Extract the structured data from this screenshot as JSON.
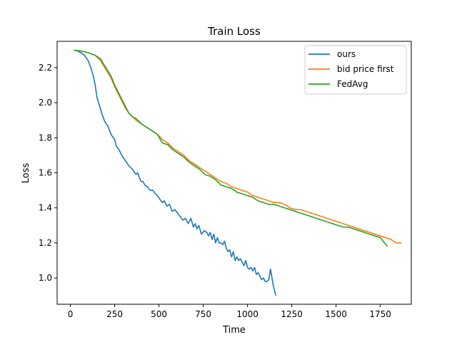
{
  "chart_data": {
    "type": "line",
    "title": "Train Loss",
    "xlabel": "Time",
    "ylabel": "Loss",
    "xlim": [
      -75,
      1925
    ],
    "ylim": [
      0.85,
      2.35
    ],
    "xticks": [
      0,
      250,
      500,
      750,
      1000,
      1250,
      1500,
      1750
    ],
    "yticks": [
      1.0,
      1.2,
      1.4,
      1.6,
      1.8,
      2.0,
      2.2
    ],
    "xtick_labels": [
      "0",
      "250",
      "500",
      "750",
      "1000",
      "1250",
      "1500",
      "1750"
    ],
    "ytick_labels": [
      "1.0",
      "1.2",
      "1.4",
      "1.6",
      "1.8",
      "2.0",
      "2.2"
    ],
    "grid": false,
    "legend_position": "top-right",
    "series": [
      {
        "name": "ours",
        "color": "#1f77b4",
        "x": [
          20,
          40,
          60,
          80,
          100,
          115,
          130,
          140,
          150,
          165,
          180,
          195,
          210,
          225,
          235,
          250,
          260,
          275,
          290,
          310,
          330,
          350,
          370,
          380,
          390,
          400,
          410,
          420,
          435,
          450,
          465,
          480,
          500,
          510,
          520,
          530,
          545,
          560,
          575,
          590,
          605,
          620,
          635,
          650,
          665,
          680,
          695,
          705,
          715,
          725,
          740,
          755,
          770,
          780,
          790,
          800,
          810,
          820,
          830,
          840,
          850,
          860,
          870,
          880,
          890,
          900,
          910,
          920,
          930,
          940,
          950,
          960,
          970,
          980,
          990,
          1000,
          1010,
          1020,
          1030,
          1040,
          1050,
          1060,
          1070,
          1080,
          1090,
          1100,
          1110,
          1120,
          1130,
          1145,
          1160
        ],
        "y": [
          2.3,
          2.295,
          2.285,
          2.27,
          2.24,
          2.2,
          2.15,
          2.1,
          2.03,
          1.98,
          1.93,
          1.89,
          1.87,
          1.83,
          1.81,
          1.79,
          1.75,
          1.73,
          1.7,
          1.67,
          1.64,
          1.62,
          1.59,
          1.6,
          1.57,
          1.55,
          1.55,
          1.53,
          1.52,
          1.5,
          1.5,
          1.48,
          1.46,
          1.44,
          1.43,
          1.44,
          1.41,
          1.42,
          1.38,
          1.39,
          1.37,
          1.35,
          1.33,
          1.34,
          1.31,
          1.34,
          1.29,
          1.31,
          1.28,
          1.3,
          1.25,
          1.27,
          1.26,
          1.24,
          1.26,
          1.22,
          1.25,
          1.2,
          1.23,
          1.2,
          1.2,
          1.19,
          1.21,
          1.17,
          1.15,
          1.16,
          1.12,
          1.15,
          1.1,
          1.12,
          1.1,
          1.11,
          1.09,
          1.07,
          1.1,
          1.06,
          1.05,
          1.06,
          1.04,
          1.06,
          1.02,
          1.03,
          1.01,
          0.99,
          1.0,
          0.98,
          0.98,
          0.99,
          1.05,
          0.96,
          0.9
        ]
      },
      {
        "name": "bid price first",
        "color": "#ff7f0e",
        "x": [
          20,
          60,
          100,
          140,
          170,
          200,
          230,
          250,
          270,
          290,
          310,
          330,
          350,
          370,
          400,
          430,
          460,
          490,
          520,
          550,
          580,
          610,
          640,
          670,
          700,
          730,
          760,
          790,
          820,
          850,
          880,
          910,
          940,
          970,
          1000,
          1030,
          1060,
          1090,
          1120,
          1150,
          1180,
          1210,
          1240,
          1270,
          1300,
          1330,
          1360,
          1390,
          1420,
          1450,
          1480,
          1510,
          1540,
          1570,
          1600,
          1630,
          1660,
          1690,
          1720,
          1750,
          1780,
          1810,
          1840,
          1870
        ],
        "y": [
          2.3,
          2.295,
          2.285,
          2.27,
          2.24,
          2.19,
          2.14,
          2.09,
          2.05,
          2.01,
          1.97,
          1.94,
          1.92,
          1.9,
          1.88,
          1.86,
          1.84,
          1.82,
          1.79,
          1.77,
          1.74,
          1.72,
          1.7,
          1.67,
          1.65,
          1.63,
          1.61,
          1.59,
          1.57,
          1.55,
          1.54,
          1.52,
          1.51,
          1.5,
          1.49,
          1.47,
          1.46,
          1.45,
          1.44,
          1.43,
          1.43,
          1.42,
          1.4,
          1.39,
          1.39,
          1.38,
          1.37,
          1.36,
          1.35,
          1.34,
          1.33,
          1.32,
          1.31,
          1.3,
          1.29,
          1.28,
          1.27,
          1.26,
          1.25,
          1.24,
          1.23,
          1.22,
          1.2,
          1.2
        ]
      },
      {
        "name": "FedAvg",
        "color": "#2ca02c",
        "x": [
          20,
          60,
          100,
          140,
          170,
          200,
          230,
          250,
          270,
          290,
          310,
          330,
          350,
          370,
          400,
          430,
          460,
          490,
          520,
          550,
          580,
          610,
          640,
          670,
          700,
          730,
          760,
          790,
          820,
          850,
          880,
          910,
          940,
          970,
          1000,
          1030,
          1060,
          1090,
          1120,
          1150,
          1180,
          1210,
          1240,
          1270,
          1300,
          1330,
          1360,
          1390,
          1420,
          1450,
          1480,
          1510,
          1540,
          1570,
          1600,
          1630,
          1660,
          1690,
          1720,
          1750,
          1790
        ],
        "y": [
          2.3,
          2.295,
          2.285,
          2.27,
          2.25,
          2.2,
          2.15,
          2.1,
          2.06,
          2.02,
          1.98,
          1.94,
          1.92,
          1.91,
          1.88,
          1.86,
          1.84,
          1.82,
          1.77,
          1.76,
          1.73,
          1.71,
          1.69,
          1.66,
          1.64,
          1.62,
          1.59,
          1.58,
          1.56,
          1.53,
          1.52,
          1.51,
          1.49,
          1.48,
          1.47,
          1.46,
          1.44,
          1.43,
          1.42,
          1.42,
          1.41,
          1.4,
          1.39,
          1.38,
          1.37,
          1.36,
          1.35,
          1.34,
          1.33,
          1.32,
          1.31,
          1.3,
          1.29,
          1.29,
          1.28,
          1.27,
          1.26,
          1.25,
          1.24,
          1.23,
          1.18
        ]
      }
    ]
  }
}
